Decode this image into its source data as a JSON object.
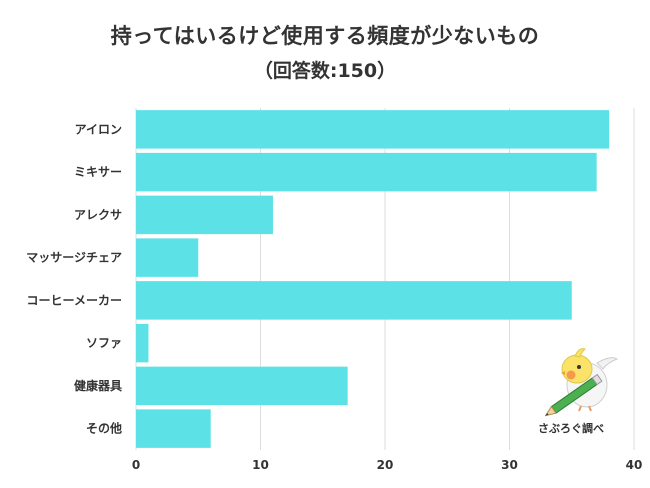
{
  "header": {
    "title": "持ってはいるけど使用する頻度が少ないもの",
    "subtitle": "（回答数:150）"
  },
  "chart_data": {
    "type": "bar",
    "orientation": "horizontal",
    "categories": [
      "アイロン",
      "ミキサー",
      "アレクサ",
      "マッサージチェア",
      "コーヒーメーカー",
      "ソファ",
      "健康器具",
      "その他"
    ],
    "values": [
      38,
      37,
      11,
      5,
      35,
      1,
      17,
      6
    ],
    "xlim": [
      0,
      40
    ],
    "xticks": [
      0,
      10,
      20,
      30,
      40
    ],
    "grid": true,
    "bar_color": "#5ce1e6"
  },
  "credit": {
    "text": "さぶろぐ調べ"
  }
}
